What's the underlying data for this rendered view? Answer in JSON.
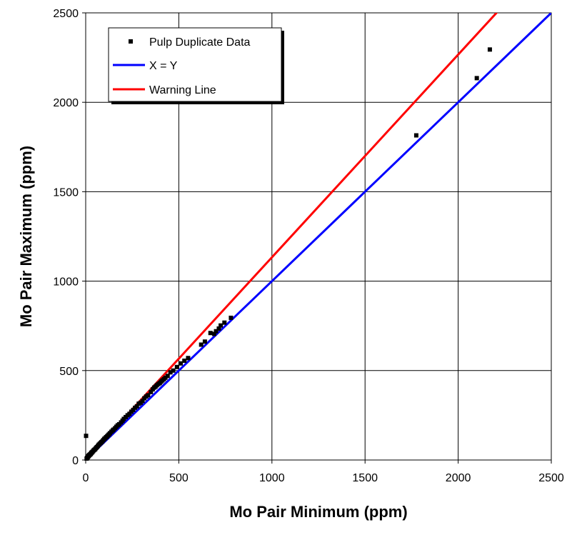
{
  "chart_data": {
    "type": "scatter",
    "xlabel": "Mo Pair Minimum (ppm)",
    "ylabel": "Mo Pair Maximum (ppm)",
    "xlim": [
      0,
      2500
    ],
    "ylim": [
      0,
      2500
    ],
    "xticks": [
      "0",
      "500",
      "1000",
      "1500",
      "2000",
      "2500"
    ],
    "yticks": [
      "0",
      "500",
      "1000",
      "1500",
      "2000",
      "2500"
    ],
    "grid": true,
    "legend_position": "top-left",
    "legend": [
      {
        "key": "points",
        "label": "Pulp Duplicate Data"
      },
      {
        "key": "xy",
        "label": "X = Y"
      },
      {
        "key": "warning",
        "label": "Warning Line"
      }
    ],
    "series": [
      {
        "name": "Pulp Duplicate Data",
        "type": "scatter",
        "color": "#000000",
        "points": [
          [
            2,
            135
          ],
          [
            5,
            8
          ],
          [
            8,
            12
          ],
          [
            10,
            15
          ],
          [
            12,
            18
          ],
          [
            14,
            20
          ],
          [
            16,
            24
          ],
          [
            18,
            26
          ],
          [
            20,
            28
          ],
          [
            22,
            30
          ],
          [
            25,
            32
          ],
          [
            28,
            35
          ],
          [
            30,
            40
          ],
          [
            33,
            42
          ],
          [
            36,
            45
          ],
          [
            40,
            50
          ],
          [
            44,
            55
          ],
          [
            48,
            58
          ],
          [
            52,
            62
          ],
          [
            56,
            68
          ],
          [
            60,
            72
          ],
          [
            65,
            78
          ],
          [
            70,
            85
          ],
          [
            75,
            90
          ],
          [
            80,
            95
          ],
          [
            85,
            100
          ],
          [
            90,
            105
          ],
          [
            95,
            112
          ],
          [
            100,
            118
          ],
          [
            105,
            122
          ],
          [
            110,
            128
          ],
          [
            115,
            132
          ],
          [
            120,
            138
          ],
          [
            125,
            143
          ],
          [
            130,
            150
          ],
          [
            138,
            158
          ],
          [
            145,
            165
          ],
          [
            150,
            170
          ],
          [
            158,
            178
          ],
          [
            165,
            186
          ],
          [
            172,
            194
          ],
          [
            180,
            200
          ],
          [
            190,
            210
          ],
          [
            198,
            220
          ],
          [
            205,
            230
          ],
          [
            215,
            240
          ],
          [
            225,
            250
          ],
          [
            235,
            258
          ],
          [
            245,
            270
          ],
          [
            255,
            280
          ],
          [
            265,
            292
          ],
          [
            275,
            300
          ],
          [
            285,
            315
          ],
          [
            295,
            320
          ],
          [
            305,
            330
          ],
          [
            315,
            345
          ],
          [
            325,
            355
          ],
          [
            335,
            362
          ],
          [
            350,
            380
          ],
          [
            360,
            395
          ],
          [
            368,
            405
          ],
          [
            375,
            410
          ],
          [
            382,
            418
          ],
          [
            390,
            425
          ],
          [
            398,
            430
          ],
          [
            405,
            438
          ],
          [
            412,
            445
          ],
          [
            420,
            452
          ],
          [
            428,
            460
          ],
          [
            440,
            470
          ],
          [
            455,
            490
          ],
          [
            470,
            500
          ],
          [
            490,
            520
          ],
          [
            510,
            540
          ],
          [
            530,
            555
          ],
          [
            550,
            570
          ],
          [
            620,
            645
          ],
          [
            640,
            662
          ],
          [
            670,
            710
          ],
          [
            690,
            705
          ],
          [
            700,
            720
          ],
          [
            715,
            735
          ],
          [
            725,
            752
          ],
          [
            745,
            768
          ],
          [
            780,
            795
          ],
          [
            1775,
            1815
          ],
          [
            2100,
            2135
          ],
          [
            2170,
            2295
          ]
        ]
      },
      {
        "name": "X = Y",
        "type": "line",
        "color": "#0000FF",
        "points": [
          [
            0,
            0
          ],
          [
            2500,
            2500
          ]
        ]
      },
      {
        "name": "Warning Line",
        "type": "line",
        "color": "#FF0000",
        "points": [
          [
            0,
            0
          ],
          [
            2250,
            2550
          ]
        ]
      }
    ]
  }
}
